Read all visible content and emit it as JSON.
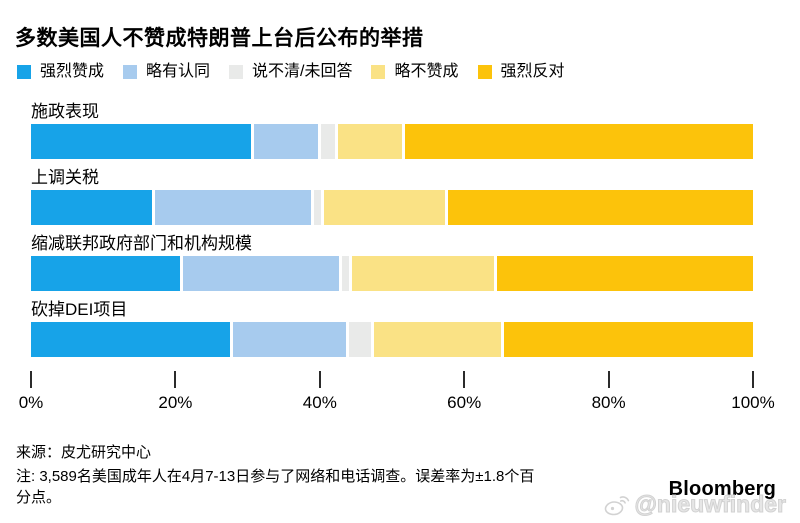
{
  "title": "多数美国人不赞成特朗普上台后公布的举措",
  "legend": [
    {
      "label": "强烈赞成",
      "color": "#17a3e8"
    },
    {
      "label": "略有认同",
      "color": "#a7cbee"
    },
    {
      "label": "说不清/未回答",
      "color": "#e9eae9"
    },
    {
      "label": "略不赞成",
      "color": "#fae285"
    },
    {
      "label": "强烈反对",
      "color": "#fcc30b"
    }
  ],
  "chart_data": {
    "type": "bar",
    "stacked": true,
    "orientation": "horizontal",
    "title": "多数美国人不赞成特朗普上台后公布的举措",
    "categories": [
      "施政表现",
      "上调关税",
      "缩减联邦政府部门和机构规模",
      "砍掉DEI项目"
    ],
    "series": [
      {
        "name": "强烈赞成",
        "color": "#17a3e8",
        "values": [
          31,
          17,
          21,
          28
        ]
      },
      {
        "name": "略有认同",
        "color": "#a7cbee",
        "values": [
          9,
          22,
          22,
          16
        ]
      },
      {
        "name": "说不清/未回答",
        "color": "#e9eae9",
        "values": [
          2,
          1,
          1,
          3
        ]
      },
      {
        "name": "略不赞成",
        "color": "#fae285",
        "values": [
          9,
          17,
          20,
          18
        ]
      },
      {
        "name": "强烈反对",
        "color": "#fcc30b",
        "values": [
          49,
          43,
          36,
          35
        ]
      }
    ],
    "xlabel": "",
    "ylabel": "",
    "x_axis": {
      "min": 0,
      "max": 100,
      "tick_labels": [
        "0%",
        "20%",
        "40%",
        "60%",
        "80%",
        "100%"
      ]
    },
    "unit": "%",
    "legend_position": "top",
    "grid": false
  },
  "footer": {
    "source": "来源：皮尤研究中心",
    "note_lines": [
      "注: 3,589名美国成年人在4月7-13日参与了网络和电话调查。误差率为±1.8个百",
      "分点。"
    ],
    "brand": "Bloomberg",
    "watermark": "@nieuwfinder"
  }
}
